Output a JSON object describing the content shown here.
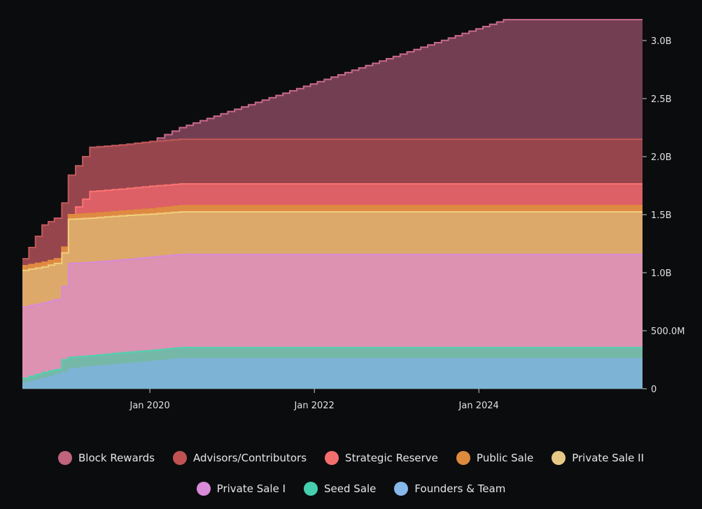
{
  "chart_data": {
    "type": "area",
    "stacked": true,
    "step": true,
    "title": "",
    "xlabel": "",
    "ylabel": "",
    "x_unit": "decimal year",
    "xlim": [
      2018.45,
      2025.99
    ],
    "ylim": [
      0,
      3200000000
    ],
    "x_ticks": [
      {
        "value": 2020.0,
        "label": "Jan 2020"
      },
      {
        "value": 2022.0,
        "label": "Jan 2022"
      },
      {
        "value": 2024.0,
        "label": "Jan 2024"
      }
    ],
    "y_ticks": [
      {
        "value": 0,
        "label": "0"
      },
      {
        "value": 500000000,
        "label": "500.0M"
      },
      {
        "value": 1000000000,
        "label": "1.0B"
      },
      {
        "value": 1500000000,
        "label": "1.5B"
      },
      {
        "value": 2000000000,
        "label": "2.0B"
      },
      {
        "value": 2500000000,
        "label": "2.5B"
      },
      {
        "value": 3000000000,
        "label": "3.0B"
      }
    ],
    "y_axis_position": "right",
    "grid": false,
    "legend_position": "bottom",
    "x": [
      2018.45,
      2018.69,
      2018.84,
      2018.93,
      2019.01,
      2019.27,
      2019.63,
      2020.0,
      2020.36,
      2024.3,
      2025.99
    ],
    "series": [
      {
        "name": "Founders & Team",
        "color": "#7fb2d8",
        "fill": "#7db3d4",
        "values": [
          0.048,
          0.09,
          0.12,
          0.14,
          0.17,
          0.19,
          0.21,
          0.235,
          0.259,
          0.259,
          0.259
        ]
      },
      {
        "name": "Seed Sale",
        "color": "#4fd1b0",
        "fill": "#76b8a8",
        "values": [
          0.042,
          0.05,
          0.045,
          0.11,
          0.1,
          0.095,
          0.1,
          0.095,
          0.096,
          0.096,
          0.096
        ]
      },
      {
        "name": "Private Sale I",
        "color": "#d98ad8",
        "fill": "#dc92b0",
        "values": [
          0.615,
          0.6,
          0.605,
          0.63,
          0.81,
          0.805,
          0.8,
          0.805,
          0.802,
          0.802,
          0.802
        ]
      },
      {
        "name": "Private Sale II",
        "color": "#f0cf7c",
        "fill": "#dca96a",
        "values": [
          0.315,
          0.31,
          0.31,
          0.29,
          0.38,
          0.38,
          0.38,
          0.37,
          0.367,
          0.367,
          0.367
        ]
      },
      {
        "name": "Public Sale",
        "color": "#e08a3c",
        "fill": "#de8a45",
        "values": [
          0.04,
          0.04,
          0.04,
          0.05,
          0.04,
          0.04,
          0.04,
          0.045,
          0.054,
          0.054,
          0.054
        ]
      },
      {
        "name": "Strategic Reserve",
        "color": "#fb7373",
        "fill": "#dc6066",
        "values": [
          0,
          0,
          0,
          0,
          0,
          0.19,
          0.19,
          0.195,
          0.187,
          0.187,
          0.187
        ]
      },
      {
        "name": "Advisors/Contributors",
        "color": "#c05858",
        "fill": "#96454d",
        "values": [
          0.06,
          0.32,
          0.35,
          0.38,
          0.34,
          0.38,
          0.38,
          0.385,
          0.385,
          0.385,
          0.385
        ]
      },
      {
        "name": "Block Rewards",
        "color": "#c96a8c",
        "fill": "#733e52",
        "values": [
          0,
          0,
          0,
          0,
          0,
          0,
          0.0,
          0.0,
          0.1,
          1.03,
          1.03
        ]
      }
    ],
    "value_scale": "billions",
    "legend_rows": [
      [
        "Block Rewards",
        "Advisors/Contributors",
        "Strategic Reserve",
        "Public Sale",
        "Private Sale II"
      ],
      [
        "Private Sale I",
        "Seed Sale",
        "Founders & Team"
      ]
    ]
  },
  "legend": {
    "row1": [
      {
        "label": "Block Rewards",
        "color": "#c0647e"
      },
      {
        "label": "Advisors/Contributors",
        "color": "#c05252"
      },
      {
        "label": "Strategic Reserve",
        "color": "#f56e6e"
      },
      {
        "label": "Public Sale",
        "color": "#dc8a3e"
      },
      {
        "label": "Private Sale II",
        "color": "#e8c886"
      }
    ],
    "row2": [
      {
        "label": "Private Sale I",
        "color": "#d98ad8"
      },
      {
        "label": "Seed Sale",
        "color": "#45cfae"
      },
      {
        "label": "Founders & Team",
        "color": "#88b8ea"
      }
    ]
  }
}
